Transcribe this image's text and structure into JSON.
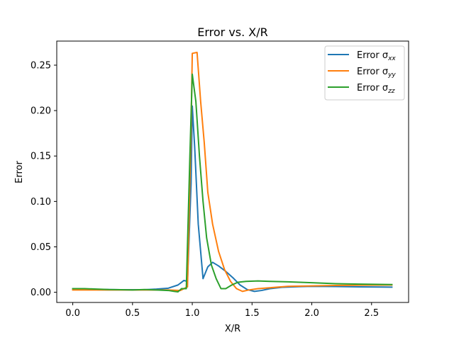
{
  "chart_data": {
    "type": "line",
    "title": "Error vs. X/R",
    "xlabel": "X/R",
    "ylabel": "Error",
    "xlim": [
      -0.134,
      2.81
    ],
    "ylim": [
      -0.0112,
      0.2765
    ],
    "xticks": [
      {
        "value": 0.0,
        "label": "0.0"
      },
      {
        "value": 0.5,
        "label": "0.5"
      },
      {
        "value": 1.0,
        "label": "1.0"
      },
      {
        "value": 1.5,
        "label": "1.5"
      },
      {
        "value": 2.0,
        "label": "2.0"
      },
      {
        "value": 2.5,
        "label": "2.5"
      }
    ],
    "yticks": [
      {
        "value": 0.0,
        "label": "0.00"
      },
      {
        "value": 0.05,
        "label": "0.05"
      },
      {
        "value": 0.1,
        "label": "0.10"
      },
      {
        "value": 0.15,
        "label": "0.15"
      },
      {
        "value": 0.2,
        "label": "0.20"
      },
      {
        "value": 0.25,
        "label": "0.25"
      }
    ],
    "grid": false,
    "legend_position": "top-right",
    "series": [
      {
        "name": "Error σxx",
        "legend_base": "Error σ",
        "legend_sub": "xx",
        "color": "#1f77b4",
        "points": [
          [
            0.0,
            0.0035
          ],
          [
            0.1,
            0.0035
          ],
          [
            0.2,
            0.003
          ],
          [
            0.3,
            0.003
          ],
          [
            0.4,
            0.0028
          ],
          [
            0.5,
            0.0028
          ],
          [
            0.6,
            0.0028
          ],
          [
            0.7,
            0.0035
          ],
          [
            0.8,
            0.0045
          ],
          [
            0.88,
            0.008
          ],
          [
            0.93,
            0.013
          ],
          [
            0.96,
            0.012
          ],
          [
            0.99,
            0.12
          ],
          [
            1.0,
            0.205
          ],
          [
            1.02,
            0.16
          ],
          [
            1.05,
            0.075
          ],
          [
            1.09,
            0.015
          ],
          [
            1.13,
            0.028
          ],
          [
            1.17,
            0.033
          ],
          [
            1.22,
            0.029
          ],
          [
            1.28,
            0.023
          ],
          [
            1.34,
            0.016
          ],
          [
            1.4,
            0.008
          ],
          [
            1.46,
            0.003
          ],
          [
            1.52,
            0.001
          ],
          [
            1.58,
            0.002
          ],
          [
            1.65,
            0.004
          ],
          [
            1.75,
            0.0055
          ],
          [
            1.9,
            0.0062
          ],
          [
            2.0,
            0.0065
          ],
          [
            2.2,
            0.0063
          ],
          [
            2.4,
            0.006
          ],
          [
            2.6,
            0.0058
          ],
          [
            2.67,
            0.0057
          ]
        ]
      },
      {
        "name": "Error σyy",
        "legend_base": "Error σ",
        "legend_sub": "yy",
        "color": "#ff7f0e",
        "points": [
          [
            0.0,
            0.0025
          ],
          [
            0.1,
            0.0025
          ],
          [
            0.2,
            0.0025
          ],
          [
            0.3,
            0.0025
          ],
          [
            0.4,
            0.0025
          ],
          [
            0.5,
            0.0025
          ],
          [
            0.6,
            0.0025
          ],
          [
            0.7,
            0.0025
          ],
          [
            0.8,
            0.0025
          ],
          [
            0.9,
            0.002
          ],
          [
            0.96,
            0.006
          ],
          [
            0.99,
            0.18
          ],
          [
            1.0,
            0.263
          ],
          [
            1.04,
            0.264
          ],
          [
            1.07,
            0.21
          ],
          [
            1.1,
            0.165
          ],
          [
            1.13,
            0.11
          ],
          [
            1.17,
            0.075
          ],
          [
            1.22,
            0.045
          ],
          [
            1.27,
            0.025
          ],
          [
            1.32,
            0.012
          ],
          [
            1.37,
            0.004
          ],
          [
            1.42,
            0.001
          ],
          [
            1.47,
            0.0025
          ],
          [
            1.55,
            0.004
          ],
          [
            1.65,
            0.005
          ],
          [
            1.8,
            0.0065
          ],
          [
            2.0,
            0.007
          ],
          [
            2.2,
            0.0075
          ],
          [
            2.4,
            0.0078
          ],
          [
            2.67,
            0.008
          ]
        ]
      },
      {
        "name": "Error σzz",
        "legend_base": "Error σ",
        "legend_sub": "zz",
        "color": "#2ca02c",
        "points": [
          [
            0.0,
            0.004
          ],
          [
            0.1,
            0.004
          ],
          [
            0.2,
            0.0035
          ],
          [
            0.3,
            0.003
          ],
          [
            0.4,
            0.0028
          ],
          [
            0.5,
            0.0025
          ],
          [
            0.6,
            0.003
          ],
          [
            0.7,
            0.0025
          ],
          [
            0.8,
            0.002
          ],
          [
            0.85,
            0.001
          ],
          [
            0.88,
            0.0005
          ],
          [
            0.91,
            0.004
          ],
          [
            0.95,
            0.004
          ],
          [
            0.98,
            0.15
          ],
          [
            1.0,
            0.24
          ],
          [
            1.03,
            0.21
          ],
          [
            1.06,
            0.15
          ],
          [
            1.09,
            0.1
          ],
          [
            1.12,
            0.06
          ],
          [
            1.16,
            0.03
          ],
          [
            1.2,
            0.015
          ],
          [
            1.24,
            0.004
          ],
          [
            1.28,
            0.004
          ],
          [
            1.33,
            0.008
          ],
          [
            1.38,
            0.011
          ],
          [
            1.45,
            0.012
          ],
          [
            1.55,
            0.0125
          ],
          [
            1.65,
            0.012
          ],
          [
            1.8,
            0.0115
          ],
          [
            2.0,
            0.0105
          ],
          [
            2.2,
            0.0095
          ],
          [
            2.4,
            0.009
          ],
          [
            2.67,
            0.0085
          ]
        ]
      }
    ]
  }
}
